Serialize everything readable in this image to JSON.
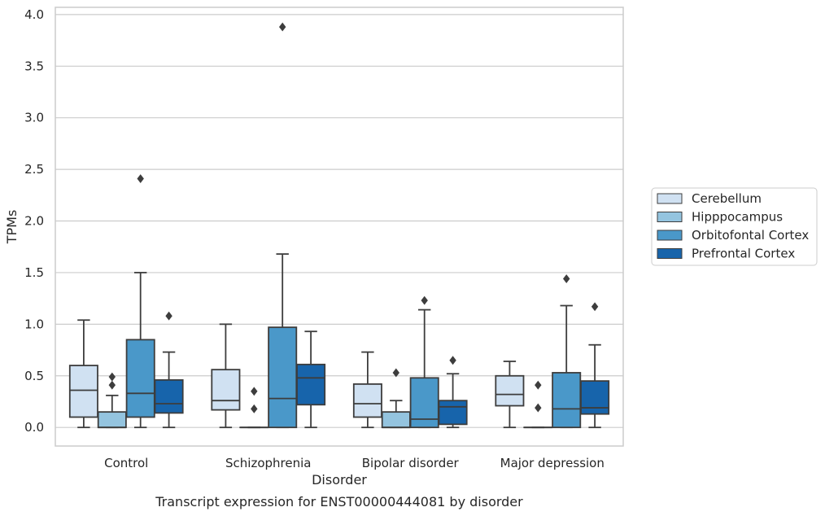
{
  "caption": "Transcript expression for ENST00000444081 by disorder",
  "chart_data": {
    "type": "box",
    "title": "",
    "xlabel": "Disorder",
    "ylabel": "TPMs",
    "ylim": [
      -0.18,
      4.07
    ],
    "yticks": [
      "0.0",
      "0.5",
      "1.0",
      "1.5",
      "2.0",
      "2.5",
      "3.0",
      "3.5",
      "4.0"
    ],
    "ytick_values": [
      0,
      0.5,
      1.0,
      1.5,
      2.0,
      2.5,
      3.0,
      3.5,
      4.0
    ],
    "grid": "horizontal",
    "legend_position": "right",
    "categories": [
      "Control",
      "Schizophrenia",
      "Bipolar disorder",
      "Major depression"
    ],
    "series": [
      {
        "name": "Cerebellum",
        "color": "#d0e1f2",
        "boxes": [
          {
            "whislo": 0.0,
            "q1": 0.1,
            "med": 0.36,
            "q3": 0.6,
            "whishi": 1.04,
            "fliers": []
          },
          {
            "whislo": 0.0,
            "q1": 0.17,
            "med": 0.26,
            "q3": 0.56,
            "whishi": 1.0,
            "fliers": []
          },
          {
            "whislo": 0.0,
            "q1": 0.1,
            "med": 0.23,
            "q3": 0.42,
            "whishi": 0.73,
            "fliers": []
          },
          {
            "whislo": 0.0,
            "q1": 0.21,
            "med": 0.32,
            "q3": 0.5,
            "whishi": 0.64,
            "fliers": []
          }
        ]
      },
      {
        "name": "Hipppocampus",
        "color": "#94c4df",
        "boxes": [
          {
            "whislo": 0.0,
            "q1": 0.0,
            "med": 0.0,
            "q3": 0.15,
            "whishi": 0.31,
            "fliers": [
              0.41,
              0.49
            ]
          },
          {
            "whislo": 0.0,
            "q1": 0.0,
            "med": 0.0,
            "q3": 0.0,
            "whishi": 0.0,
            "fliers": [
              0.18,
              0.35
            ]
          },
          {
            "whislo": 0.0,
            "q1": 0.0,
            "med": 0.0,
            "q3": 0.15,
            "whishi": 0.26,
            "fliers": [
              0.53
            ]
          },
          {
            "whislo": 0.0,
            "q1": 0.0,
            "med": 0.0,
            "q3": 0.0,
            "whishi": 0.0,
            "fliers": [
              0.19,
              0.41
            ]
          }
        ]
      },
      {
        "name": "Orbitofontal Cortex",
        "color": "#4a98c9",
        "boxes": [
          {
            "whislo": 0.0,
            "q1": 0.1,
            "med": 0.33,
            "q3": 0.85,
            "whishi": 1.5,
            "fliers": [
              2.41
            ]
          },
          {
            "whislo": 0.0,
            "q1": 0.0,
            "med": 0.28,
            "q3": 0.97,
            "whishi": 1.68,
            "fliers": [
              3.88
            ]
          },
          {
            "whislo": 0.0,
            "q1": 0.0,
            "med": 0.08,
            "q3": 0.48,
            "whishi": 1.14,
            "fliers": [
              1.23
            ]
          },
          {
            "whislo": 0.0,
            "q1": 0.0,
            "med": 0.18,
            "q3": 0.53,
            "whishi": 1.18,
            "fliers": [
              1.44
            ]
          }
        ]
      },
      {
        "name": "Prefrontal Cortex",
        "color": "#1764ab",
        "boxes": [
          {
            "whislo": 0.0,
            "q1": 0.14,
            "med": 0.23,
            "q3": 0.46,
            "whishi": 0.73,
            "fliers": [
              1.08
            ]
          },
          {
            "whislo": 0.0,
            "q1": 0.22,
            "med": 0.48,
            "q3": 0.61,
            "whishi": 0.93,
            "fliers": []
          },
          {
            "whislo": 0.0,
            "q1": 0.03,
            "med": 0.2,
            "q3": 0.26,
            "whishi": 0.52,
            "fliers": [
              0.65
            ]
          },
          {
            "whislo": 0.0,
            "q1": 0.13,
            "med": 0.19,
            "q3": 0.45,
            "whishi": 0.8,
            "fliers": [
              1.17
            ]
          }
        ]
      }
    ]
  }
}
